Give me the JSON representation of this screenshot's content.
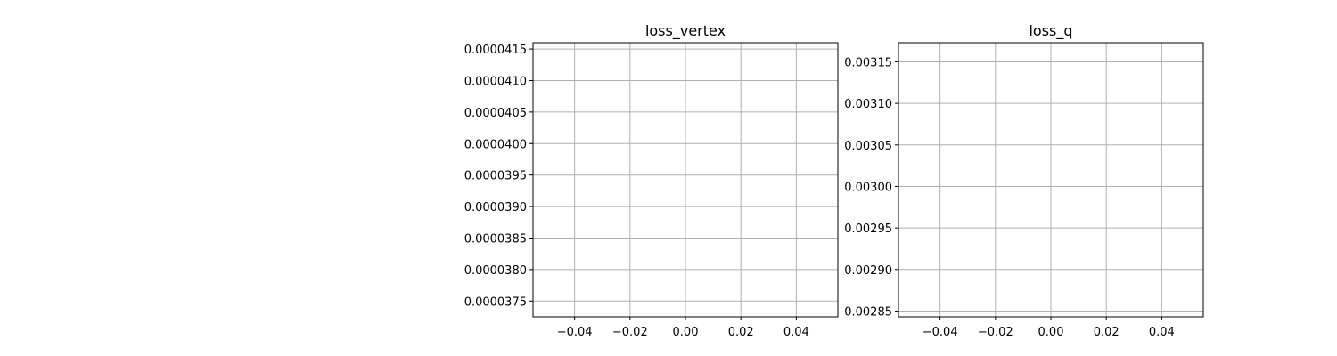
{
  "style": {
    "grid_color": "#b0b0b0",
    "axis_color": "#000000",
    "background": "#ffffff"
  },
  "chart_data": [
    {
      "type": "line",
      "title": "loss_vertex",
      "xlabel": "",
      "ylabel": "",
      "grid": true,
      "series": [],
      "xlim": [
        -0.055,
        0.055
      ],
      "ylim": [
        3.725e-05,
        4.16e-05
      ],
      "xticks": [
        -0.04,
        -0.02,
        0.0,
        0.02,
        0.04
      ],
      "xtick_labels": [
        "−0.04",
        "−0.02",
        "0.00",
        "0.02",
        "0.04"
      ],
      "yticks": [
        3.75e-05,
        3.8e-05,
        3.85e-05,
        3.9e-05,
        3.95e-05,
        4e-05,
        4.05e-05,
        4.1e-05,
        4.15e-05
      ],
      "ytick_labels": [
        "0.0000375",
        "0.0000380",
        "0.0000385",
        "0.0000390",
        "0.0000395",
        "0.0000400",
        "0.0000405",
        "0.0000410",
        "0.0000415"
      ]
    },
    {
      "type": "line",
      "title": "loss_q",
      "xlabel": "",
      "ylabel": "",
      "grid": true,
      "series": [],
      "xlim": [
        -0.055,
        0.055
      ],
      "ylim": [
        0.002843,
        0.003173
      ],
      "xticks": [
        -0.04,
        -0.02,
        0.0,
        0.02,
        0.04
      ],
      "xtick_labels": [
        "−0.04",
        "−0.02",
        "0.00",
        "0.02",
        "0.04"
      ],
      "yticks": [
        0.00285,
        0.0029,
        0.00295,
        0.003,
        0.00305,
        0.0031,
        0.00315
      ],
      "ytick_labels": [
        "0.00285",
        "0.00290",
        "0.00295",
        "0.00300",
        "0.00305",
        "0.00310",
        "0.00315"
      ]
    }
  ]
}
